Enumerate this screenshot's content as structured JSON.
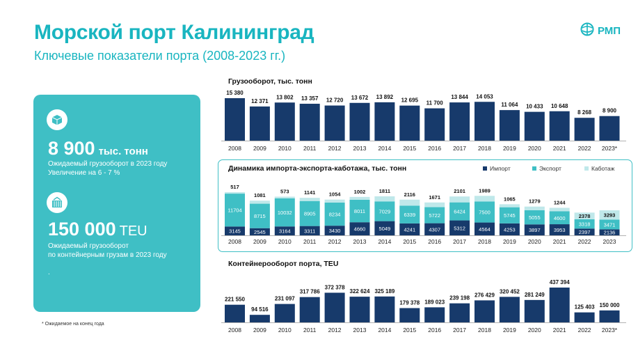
{
  "header": {
    "title": "Морской порт Калининград",
    "subtitle": "Ключевые показатели порта (2008-2023 гг.)",
    "logo_text": "РМП"
  },
  "card": {
    "stat1_value": "8 900",
    "stat1_unit": "тыс. тонн",
    "stat1_note_line1": "Ожидаемый грузооборот в 2023 году",
    "stat1_note_line2": "Увеличение на 6 - 7 %",
    "stat2_value": "150 000",
    "stat2_unit": "TEU",
    "stat2_note_line1": "Ожидаемый грузооборот",
    "stat2_note_line2": "по контейнерным грузам в 2023 году",
    "stat2_note_line3": "."
  },
  "footnote": "* Ожидаемое на конец года",
  "colors": {
    "brand": "#19b5c0",
    "navy": "#173a6b",
    "teal": "#3fbfc5",
    "light": "#bfe8ea"
  },
  "chart_data": [
    {
      "type": "bar",
      "title": "Грузооборот, тыс. тонн",
      "categories": [
        "2008",
        "2009",
        "2010",
        "2011",
        "2012",
        "2013",
        "2014",
        "2015",
        "2016",
        "2017",
        "2018",
        "2019",
        "2020",
        "2021",
        "2022",
        "2023*"
      ],
      "values": [
        15380,
        12371,
        13802,
        13357,
        12720,
        13672,
        13892,
        12695,
        11700,
        13844,
        14053,
        11064,
        10433,
        10648,
        8268,
        8900
      ],
      "labels": [
        "15 380",
        "12 371",
        "13 802",
        "13 357",
        "12 720",
        "13 672",
        "13 892",
        "12 695",
        "11 700",
        "13 844",
        "14 053",
        "11 064",
        "10 433",
        "10 648",
        "8 268",
        "8 900"
      ]
    },
    {
      "type": "bar",
      "stacked": true,
      "title": "Динамика импорта-экспорта-каботажа, тыс. тонн",
      "categories": [
        "2008",
        "2009",
        "2010",
        "2011",
        "2012",
        "2013",
        "2014",
        "2015",
        "2016",
        "2017",
        "2018",
        "2019",
        "2020",
        "2021",
        "2022",
        "2023"
      ],
      "series": [
        {
          "name": "Импорт",
          "values": [
            3145,
            2545,
            3164,
            3311,
            3430,
            4660,
            5049,
            4241,
            4307,
            5312,
            4564,
            4253,
            3897,
            3953,
            2397,
            2136
          ]
        },
        {
          "name": "Экспорт",
          "values": [
            11704,
            8715,
            10032,
            8905,
            8234,
            8011,
            7029,
            6339,
            5722,
            6424,
            7500,
            5745,
            5055,
            4600,
            3318,
            3471
          ]
        },
        {
          "name": "Каботаж",
          "values": [
            517,
            1081,
            573,
            1141,
            1054,
            1002,
            1811,
            2116,
            1671,
            2101,
            1989,
            1065,
            1279,
            1244,
            2378,
            3293
          ]
        }
      ],
      "legend_position": "top-right"
    },
    {
      "type": "bar",
      "title": "Контейнерооборот порта, TEU",
      "categories": [
        "2008",
        "2009",
        "2010",
        "2011",
        "2012",
        "2013",
        "2014",
        "2015",
        "2016",
        "2017",
        "2018",
        "2019",
        "2020",
        "2021",
        "2022",
        "2023*"
      ],
      "values": [
        221550,
        94516,
        231097,
        317786,
        372378,
        322624,
        325189,
        179378,
        189023,
        239198,
        276429,
        320452,
        281249,
        437394,
        125403,
        150000
      ],
      "labels": [
        "221 550",
        "94 516",
        "231 097",
        "317 786",
        "372 378",
        "322 624",
        "325 189",
        "179 378",
        "189 023",
        "239 198",
        "276 429",
        "320 452",
        "281 249",
        "437 394",
        "125 403",
        "150 000"
      ]
    }
  ]
}
